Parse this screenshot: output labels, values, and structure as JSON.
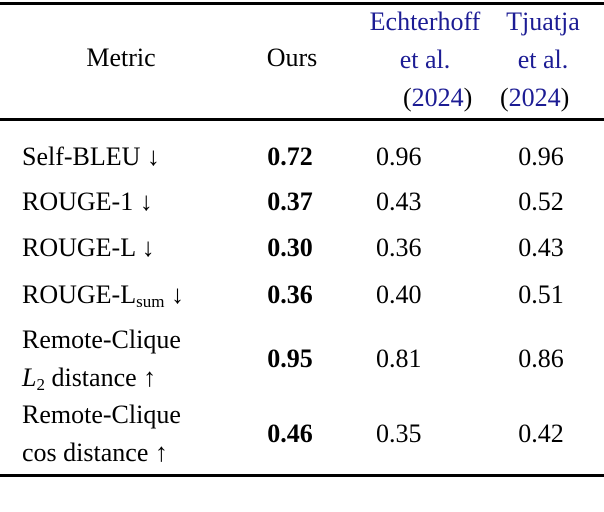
{
  "header": {
    "metric": "Metric",
    "ours": "Ours",
    "echterhoff": {
      "line1": "Echterhoff",
      "line2": "et al.",
      "open": "(",
      "year": "2024",
      "close": ")"
    },
    "tjuatja": {
      "line1": "Tjuatja",
      "line2": "et al.",
      "open": "(",
      "year": "2024",
      "close": ")"
    }
  },
  "citation_color": "#1c1c94",
  "rows": [
    {
      "lines": [
        {
          "pre": "Self-BLEU",
          "sub": "",
          "post": " ↓"
        }
      ],
      "ours": "0.72",
      "echterhoff": "0.96",
      "tjuatja": "0.96"
    },
    {
      "lines": [
        {
          "pre": "ROUGE-1",
          "sub": "",
          "post": " ↓"
        }
      ],
      "ours": "0.37",
      "echterhoff": "0.43",
      "tjuatja": "0.52"
    },
    {
      "lines": [
        {
          "pre": "ROUGE-L",
          "sub": "",
          "post": " ↓"
        }
      ],
      "ours": "0.30",
      "echterhoff": "0.36",
      "tjuatja": "0.43"
    },
    {
      "lines": [
        {
          "pre": "ROUGE-L",
          "sub": "sum",
          "post": " ↓"
        }
      ],
      "ours": "0.36",
      "echterhoff": "0.40",
      "tjuatja": "0.51"
    },
    {
      "lines": [
        {
          "pre": "Remote-Clique",
          "sub": "",
          "post": ""
        },
        {
          "pre": "L",
          "sub": "2",
          "post": " distance ↑"
        }
      ],
      "ours": "0.95",
      "echterhoff": "0.81",
      "tjuatja": "0.86"
    },
    {
      "lines": [
        {
          "pre": "Remote-Clique",
          "sub": "",
          "post": ""
        },
        {
          "pre": "cos",
          "sub": "",
          "post": " distance ↑"
        }
      ],
      "ours": "0.46",
      "echterhoff": "0.35",
      "tjuatja": "0.42"
    }
  ]
}
